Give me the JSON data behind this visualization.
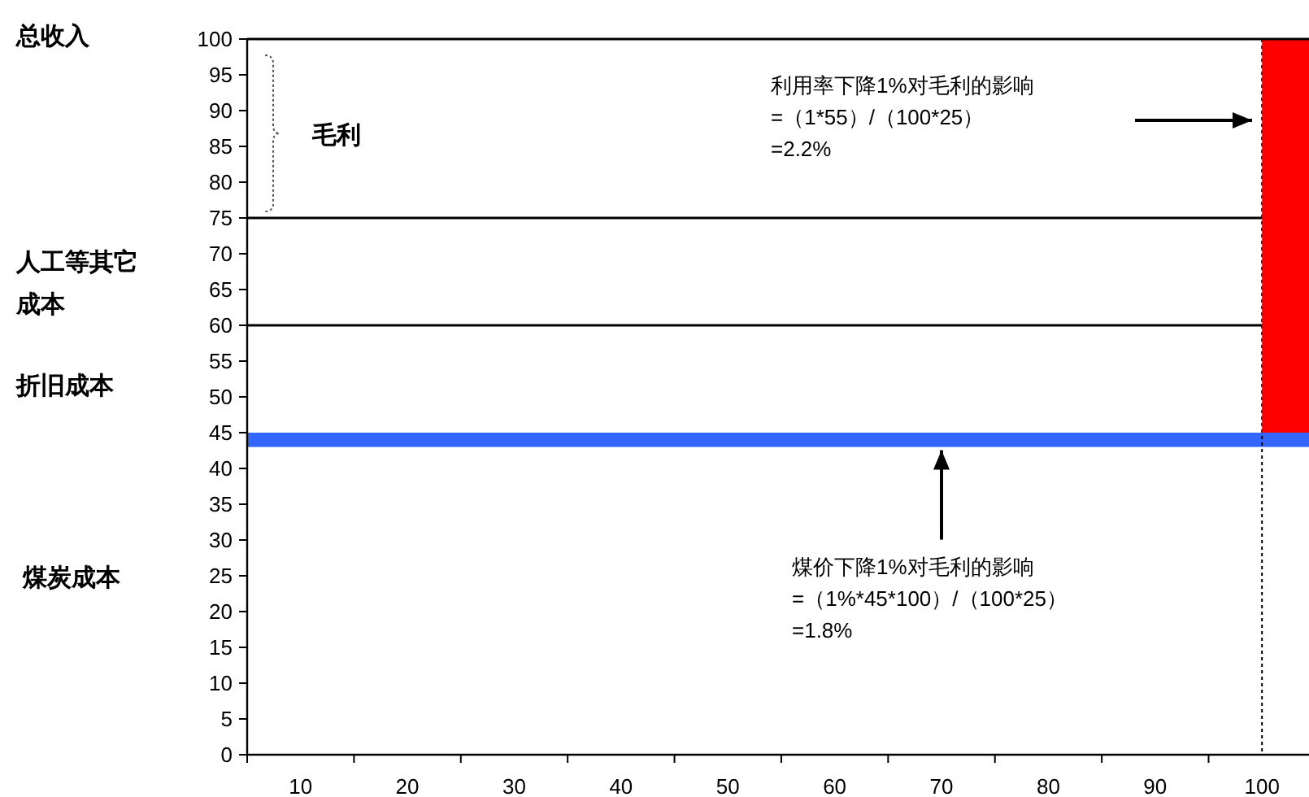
{
  "chart_data": {
    "type": "bar",
    "x": [
      102.5
    ],
    "values": [
      55
    ],
    "base": [
      45
    ],
    "colors": [
      "#ff0000"
    ],
    "xlim": [
      5,
      104.4
    ],
    "xticks": [
      {
        "value": 5,
        "label": null
      },
      10,
      {
        "value": 15,
        "label": null
      },
      20,
      {
        "value": 25,
        "label": null
      },
      30,
      {
        "value": 35,
        "label": null
      },
      40,
      {
        "value": 45,
        "label": null
      },
      50,
      {
        "value": 55,
        "label": null
      },
      60,
      {
        "value": 65,
        "label": null
      },
      70,
      {
        "value": 75,
        "label": null
      },
      80,
      {
        "value": 85,
        "label": null
      },
      90,
      {
        "value": 95,
        "label": null
      },
      100
    ],
    "ylim": [
      0,
      100
    ],
    "yticks": [
      0,
      5,
      10,
      15,
      20,
      25,
      30,
      35,
      40,
      45,
      50,
      55,
      60,
      65,
      70,
      75,
      80,
      85,
      90,
      95,
      100
    ],
    "ref_lines": [
      {
        "axis": "y",
        "value": 75,
        "color": "#000000"
      },
      {
        "axis": "y",
        "value": 60,
        "color": "#000000"
      },
      {
        "axis": "x",
        "value": 100,
        "color": "#000000",
        "line_style": "dotted"
      }
    ],
    "bands": [
      {
        "axis": "y",
        "from": 43,
        "to": 45,
        "color": "#3366ff"
      }
    ],
    "annotations": [
      "总收入",
      "人工等其它",
      "成本",
      "折旧成本",
      "煤炭成本",
      "毛利",
      "利用率下降1%对毛利的影响\n=（1*55）/（100*25）\n=2.2%",
      {
        "text": "煤价下降1%对毛利的影响\n=（1%*45*100）/（100*25）\n=1.8%",
        "x": 70,
        "y": 43
      }
    ]
  }
}
